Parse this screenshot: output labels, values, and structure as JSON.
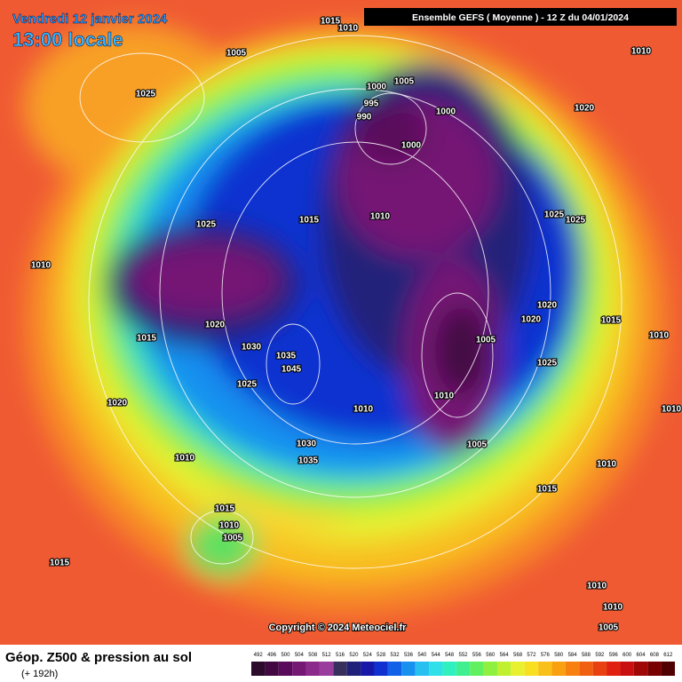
{
  "header": {
    "date": "Vendredi 12 janvier 2024",
    "time": "13:00 locale",
    "run": "Ensemble GEFS  ( Moyenne )  -  12 Z du 04/01/2024"
  },
  "isobar_labels": [
    "1015",
    "1010",
    "1005",
    "1010",
    "1025",
    "1000",
    "1005",
    "995",
    "990",
    "1000",
    "1020",
    "1000",
    "1025",
    "1015",
    "1010",
    "1025",
    "1025",
    "1010",
    "1020",
    "1020",
    "1015",
    "1020",
    "1005",
    "1015",
    "1010",
    "1030",
    "1035",
    "1025",
    "1045",
    "1025",
    "1010",
    "1020",
    "1010",
    "1010",
    "1030",
    "1005",
    "1035",
    "1010",
    "1010",
    "1015",
    "1015",
    "1010",
    "1005",
    "1015",
    "1010",
    "1010",
    "1005"
  ],
  "copyright": "Copyright © 2024 Meteociel.fr",
  "footer": {
    "title": "Géop. Z500 & pression au sol",
    "lead": "(+ 192h)"
  },
  "scale": {
    "labels": [
      492,
      496,
      500,
      504,
      508,
      512,
      516,
      520,
      524,
      528,
      532,
      536,
      540,
      544,
      548,
      552,
      556,
      560,
      564,
      568,
      572,
      576,
      580,
      584,
      588,
      592,
      596,
      600,
      604,
      608,
      612
    ],
    "colors": [
      "#2b0a2b",
      "#420842",
      "#5a0a5a",
      "#741874",
      "#8c2a8c",
      "#9a3c9e",
      "#38305c",
      "#20207a",
      "#1818a8",
      "#1030d0",
      "#1060e8",
      "#1890f0",
      "#28c0f0",
      "#30e0e8",
      "#30f0c0",
      "#40f090",
      "#60f060",
      "#90f040",
      "#c0f030",
      "#e8f030",
      "#f8e020",
      "#f8c018",
      "#f8a010",
      "#f88010",
      "#f06010",
      "#e84010",
      "#e02010",
      "#c81010",
      "#a00808",
      "#780000",
      "#500000"
    ]
  }
}
